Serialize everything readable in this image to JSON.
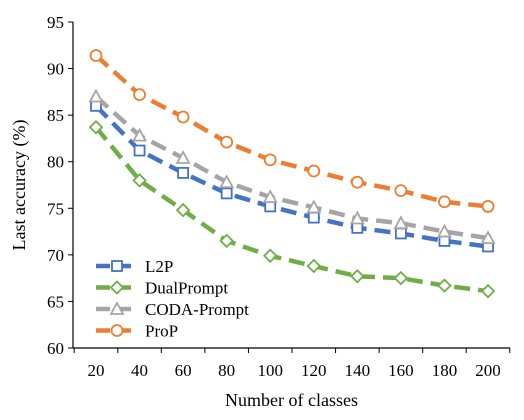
{
  "chart_data": {
    "type": "line",
    "title": "",
    "xlabel": "Number of classes",
    "ylabel": "Last accuracy (%)",
    "x": [
      20,
      40,
      60,
      80,
      100,
      120,
      140,
      160,
      180,
      200
    ],
    "x_tick_labels": [
      "20",
      "40",
      "60",
      "80",
      "100",
      "120",
      "140",
      "160",
      "180",
      "200"
    ],
    "ylim": [
      60,
      95
    ],
    "y_ticks": [
      60,
      65,
      70,
      75,
      80,
      85,
      90,
      95
    ],
    "y_tick_labels": [
      "60",
      "65",
      "70",
      "75",
      "80",
      "85",
      "90",
      "95"
    ],
    "grid": false,
    "legend_position": "bottom-left",
    "series": [
      {
        "name": "L2P",
        "color": "#4472C4",
        "marker": "square",
        "values": [
          86.0,
          81.2,
          78.8,
          76.6,
          75.2,
          74.0,
          72.9,
          72.3,
          71.5,
          70.9
        ]
      },
      {
        "name": "DualPrompt",
        "color": "#70AD47",
        "marker": "diamond",
        "values": [
          83.7,
          78.0,
          74.8,
          71.5,
          69.9,
          68.8,
          67.7,
          67.5,
          66.7,
          66.1
        ]
      },
      {
        "name": "CODA-Prompt",
        "color": "#A5A5A5",
        "marker": "triangle",
        "values": [
          87.0,
          82.8,
          80.4,
          77.8,
          76.2,
          75.1,
          73.9,
          73.4,
          72.5,
          71.8
        ]
      },
      {
        "name": "ProP",
        "color": "#ED7D31",
        "marker": "circle",
        "values": [
          91.4,
          87.2,
          84.8,
          82.1,
          80.2,
          79.0,
          77.8,
          76.9,
          75.7,
          75.2
        ]
      }
    ]
  }
}
